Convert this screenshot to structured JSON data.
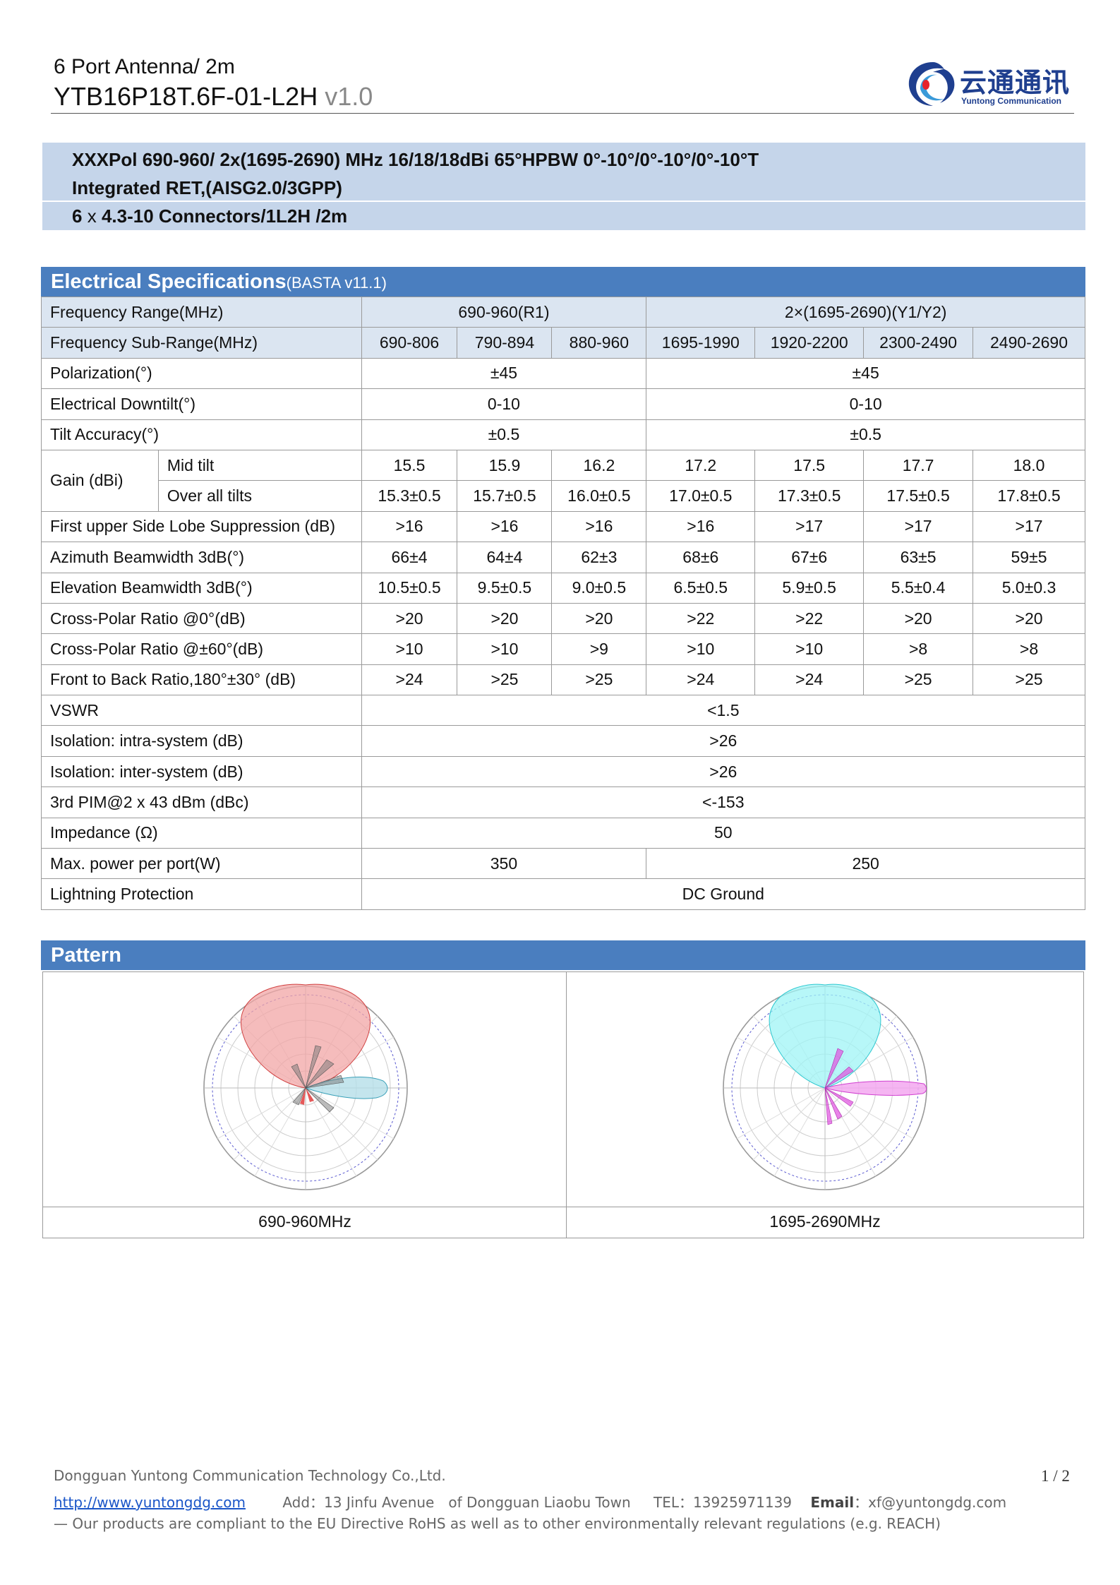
{
  "header": {
    "title_line1": "6 Port Antenna/ 2m",
    "model": "YTB16P18T.6F-01-L2H",
    "version": "v1.0"
  },
  "logo": {
    "cn_text": "云通通讯",
    "en_text": "Yuntong Communication",
    "color": "#1f3f8f"
  },
  "summary": {
    "line1": "XXXPol 690-960/ 2x(1695-2690) MHz 16/18/18dBi 65°HPBW 0°-10°/0°-10°/0°-10°T",
    "line2": "Integrated RET,(AISG2.0/3GPP)",
    "line3_a": "6",
    "line3_b": "x",
    "line3_c": "4.3-10 Connectors/1L2H /2m"
  },
  "electrical": {
    "title": "Electrical Specifications",
    "subtitle": "(BASTA v11.1)",
    "freq_range_label": "Frequency Range(MHz)",
    "freq_range_r1": "690-960(R1)",
    "freq_range_y": "2×(1695-2690)(Y1/Y2)",
    "sub_range_label": "Frequency Sub-Range(MHz)",
    "sub_ranges": [
      "690-806",
      "790-894",
      "880-960",
      "1695-1990",
      "1920-2200",
      "2300-2490",
      "2490-2690"
    ],
    "polarization_label": "Polarization(°)",
    "polarization_r1": "±45",
    "polarization_y": "±45",
    "downtilt_label": "Electrical Downtilt(°)",
    "downtilt_r1": "0-10",
    "downtilt_y": "0-10",
    "tilt_acc_label": "Tilt Accuracy(°)",
    "tilt_acc_r1": "±0.5",
    "tilt_acc_y": "±0.5",
    "gain_label": "Gain (dBi)",
    "gain_mid_label": "Mid tilt",
    "gain_mid": [
      "15.5",
      "15.9",
      "16.2",
      "17.2",
      "17.5",
      "17.7",
      "18.0"
    ],
    "gain_all_label": "Over all tilts",
    "gain_all": [
      "15.3±0.5",
      "15.7±0.5",
      "16.0±0.5",
      "17.0±0.5",
      "17.3±0.5",
      "17.5±0.5",
      "17.8±0.5"
    ],
    "slsup_label": "First upper Side Lobe Suppression (dB)",
    "slsup": [
      ">16",
      ">16",
      ">16",
      ">16",
      ">17",
      ">17",
      ">17"
    ],
    "az_label": "Azimuth Beamwidth 3dB(°)",
    "az": [
      "66±4",
      "64±4",
      "62±3",
      "68±6",
      "67±6",
      "63±5",
      "59±5"
    ],
    "el_label": "Elevation Beamwidth 3dB(°)",
    "el": [
      "10.5±0.5",
      "9.5±0.5",
      "9.0±0.5",
      "6.5±0.5",
      "5.9±0.5",
      "5.5±0.4",
      "5.0±0.3"
    ],
    "xpol0_label": "Cross-Polar Ratio @0°(dB)",
    "xpol0": [
      ">20",
      ">20",
      ">20",
      ">22",
      ">22",
      ">20",
      ">20"
    ],
    "xpol60_label": "Cross-Polar Ratio @±60°(dB)",
    "xpol60": [
      ">10",
      ">10",
      ">9",
      ">10",
      ">10",
      ">8",
      ">8"
    ],
    "fb_label": "Front to Back Ratio,180°±30° (dB)",
    "fb": [
      ">24",
      ">25",
      ">25",
      ">24",
      ">24",
      ">25",
      ">25"
    ],
    "vswr_label": "VSWR",
    "vswr": "<1.5",
    "iso_intra_label": "Isolation: intra-system (dB)",
    "iso_intra": ">26",
    "iso_inter_label": "Isolation: inter-system (dB)",
    "iso_inter": ">26",
    "pim_label": "3rd PIM@2 x 43 dBm (dBc)",
    "pim": "<-153",
    "imp_label": "Impedance (Ω)",
    "imp": "50",
    "power_label": "Max. power per port(W)",
    "power_r1": "350",
    "power_y": "250",
    "lightning_label": "Lightning Protection",
    "lightning": "DC Ground"
  },
  "pattern": {
    "title": "Pattern",
    "left_caption": "690-960MHz",
    "right_caption": "1695-2690MHz",
    "left_colors": [
      "#f2a6a6",
      "#b5dfe8"
    ],
    "right_colors": [
      "#9ff4f6",
      "#f3a8f0"
    ]
  },
  "footer": {
    "company": "Dongguan Yuntong Communication Technology Co.,Ltd.",
    "url": "http://www.yuntongdg.com",
    "address": "Add：13 Jinfu Avenue　of Dongguan Liaobu Town",
    "tel": "TEL：13925971139",
    "email_label": "Email",
    "email": "：xf@yuntongdg.com",
    "compliance": "— Our products are compliant to the EU Directive RoHS as well as to other environmentally relevant regulations (e.g. REACH)",
    "page": "1 / 2"
  }
}
